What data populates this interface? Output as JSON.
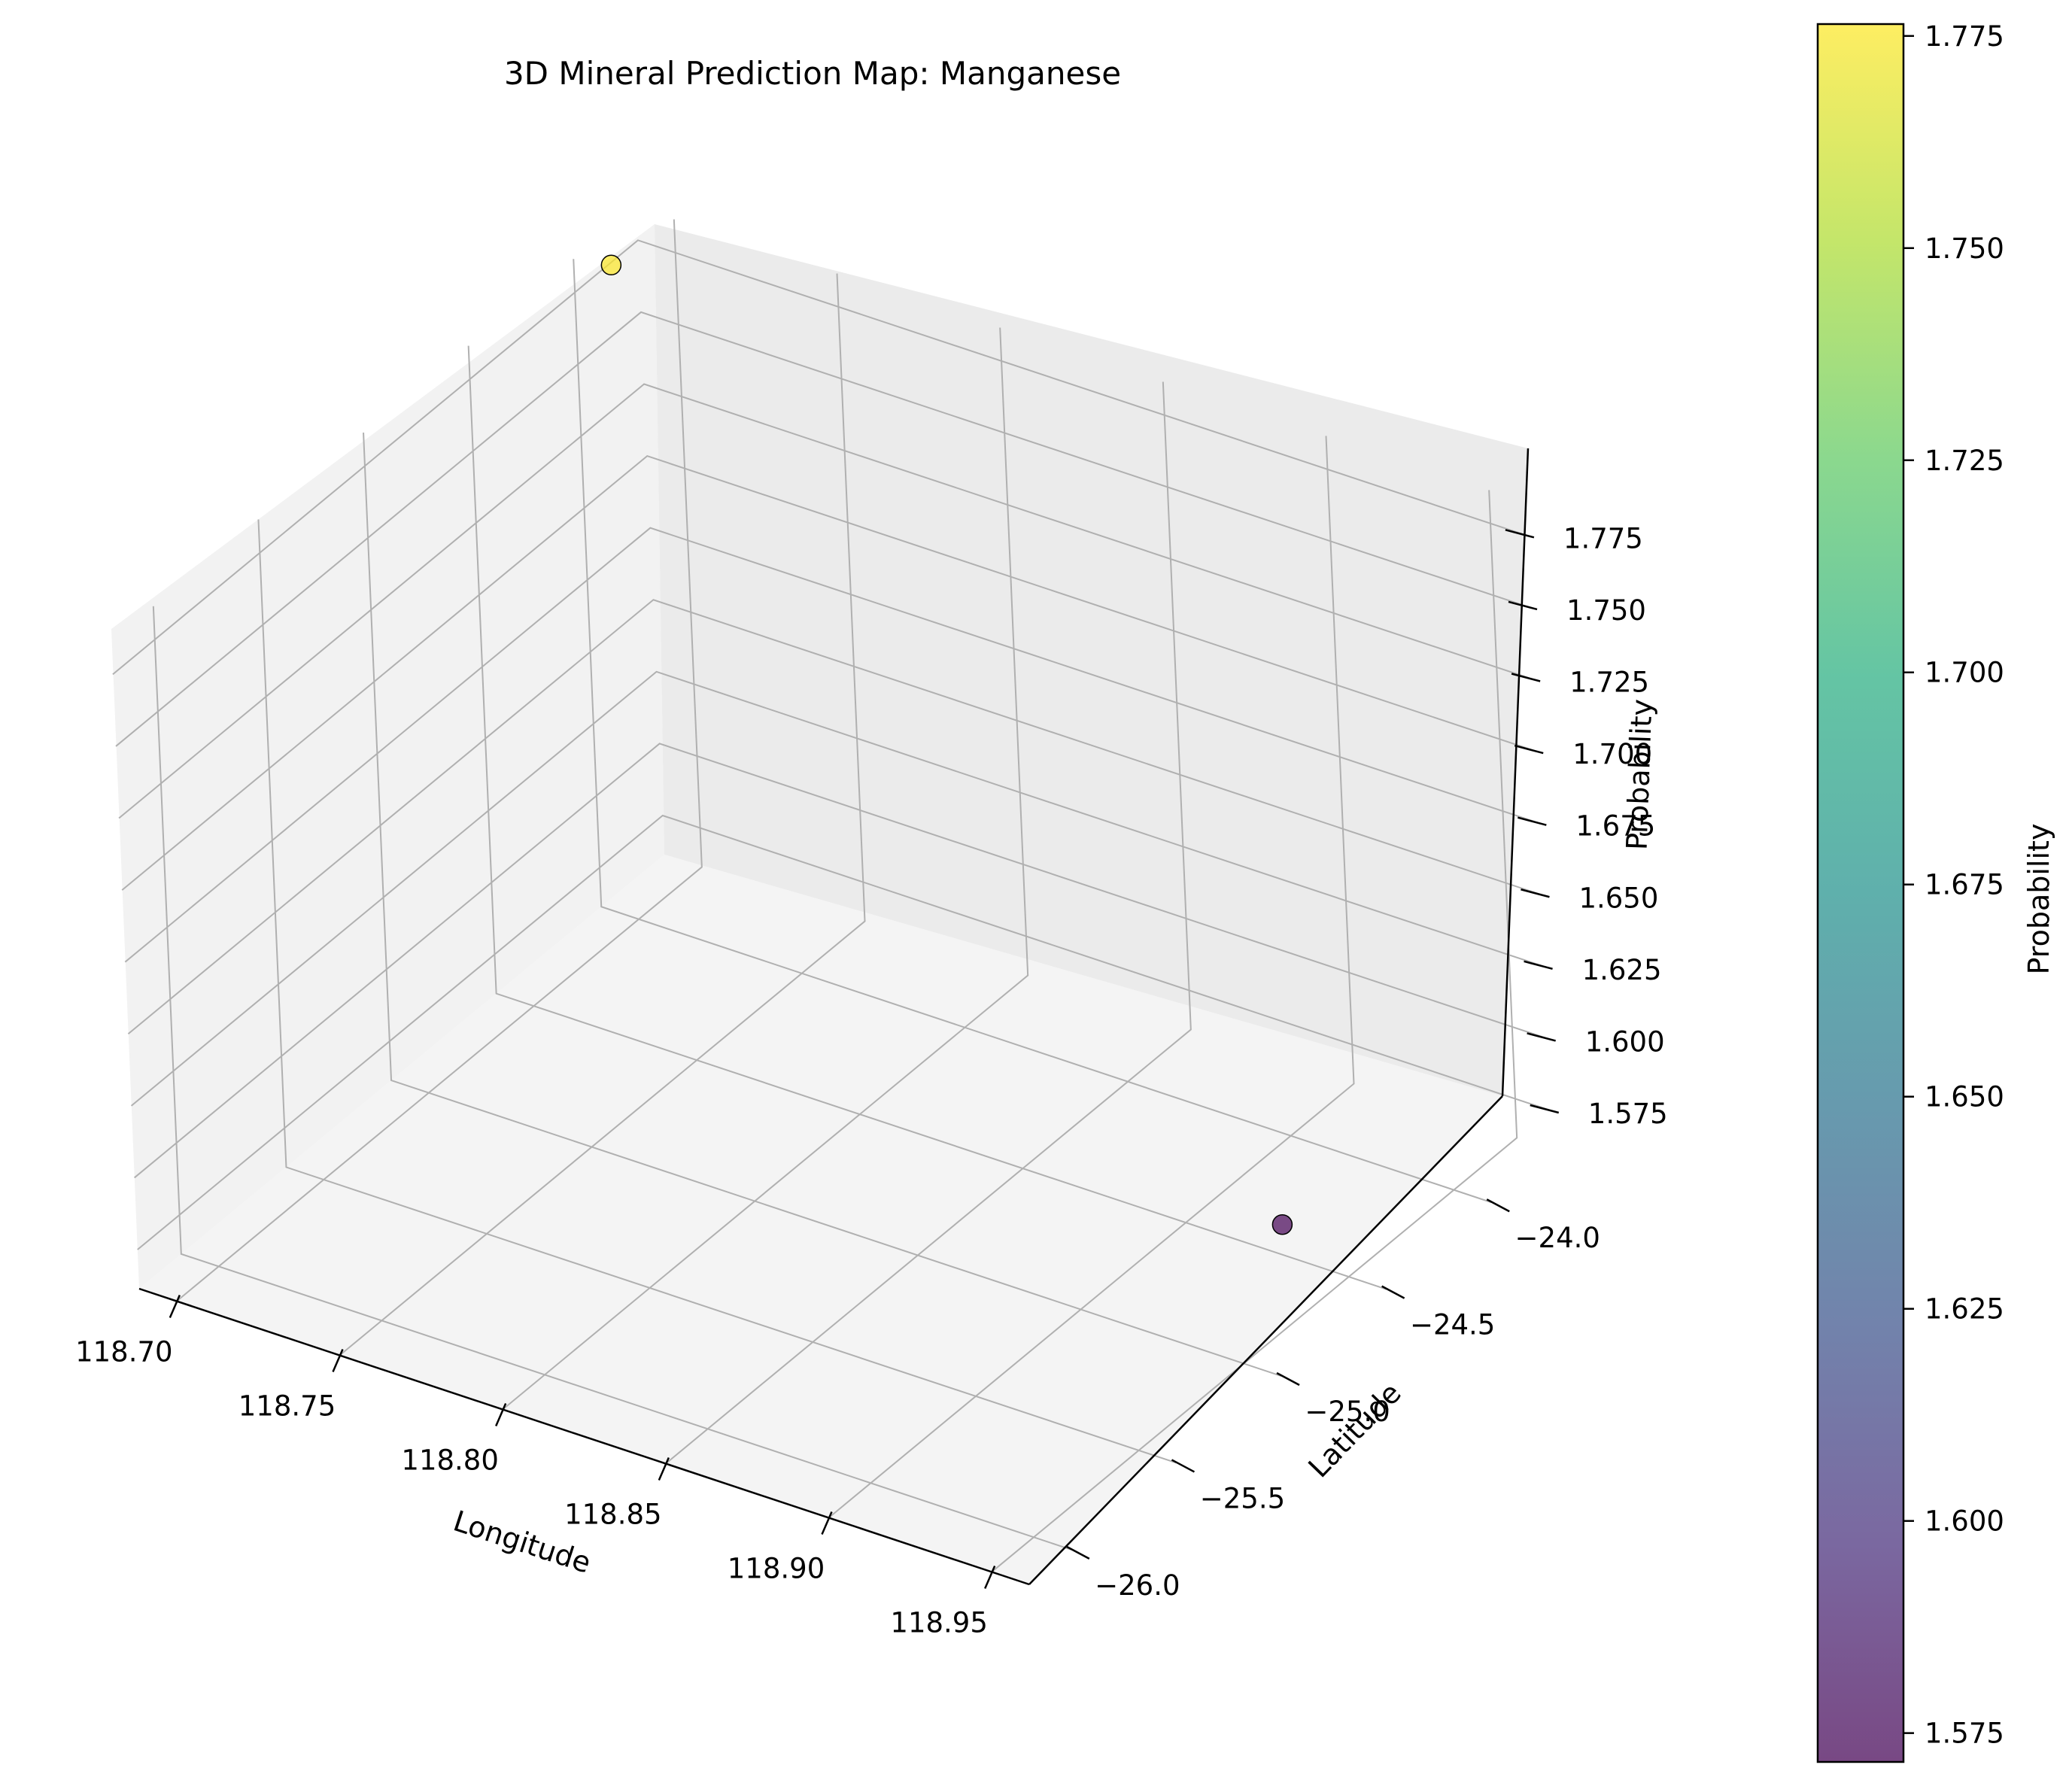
{
  "chart_data": {
    "type": "scatter",
    "projection": "3d",
    "title": "3D Mineral Prediction Map: Manganese",
    "xlabel": "Longitude",
    "ylabel": "Latitude",
    "zlabel": "Probability",
    "grid": true,
    "x_ticks": [
      "118.70",
      "118.75",
      "118.80",
      "118.85",
      "118.90",
      "118.95"
    ],
    "y_ticks": [
      "−26.0",
      "−25.5",
      "−25.0",
      "−24.5",
      "−24.0"
    ],
    "z_ticks": [
      "1.575",
      "1.600",
      "1.625",
      "1.650",
      "1.675",
      "1.700",
      "1.725",
      "1.750",
      "1.775"
    ],
    "colormap": "viridis",
    "point_alpha": 0.7,
    "points": [
      {
        "x": 118.69,
        "y": -23.85,
        "z": 1.776
      },
      {
        "x": 118.93,
        "y": -24.5,
        "z": 1.572
      }
    ],
    "colorbar": {
      "label": "Probability",
      "ticks": [
        "1.575",
        "1.600",
        "1.625",
        "1.650",
        "1.675",
        "1.700",
        "1.725",
        "1.750",
        "1.775"
      ],
      "range": [
        1.5716,
        1.7764
      ]
    }
  }
}
